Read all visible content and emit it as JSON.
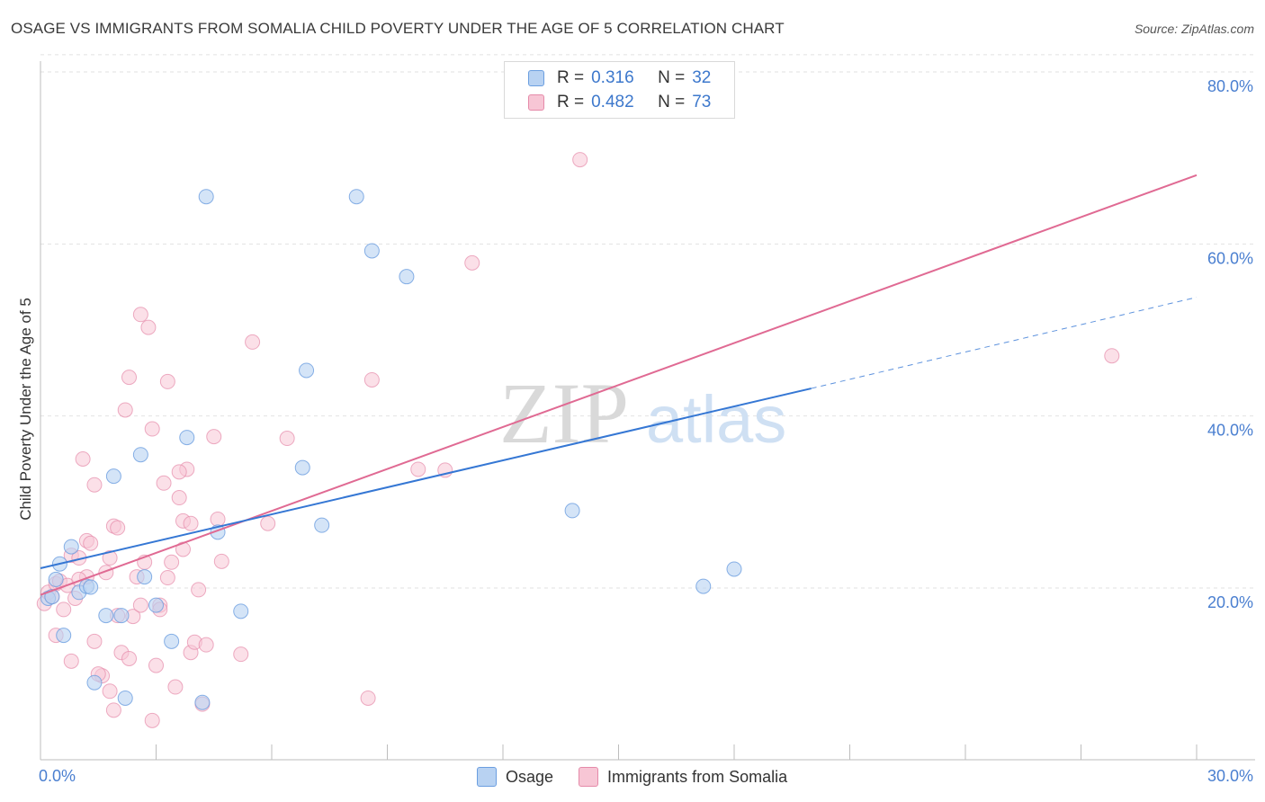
{
  "title": "OSAGE VS IMMIGRANTS FROM SOMALIA CHILD POVERTY UNDER THE AGE OF 5 CORRELATION CHART",
  "source": "Source: ZipAtlas.com",
  "watermark": {
    "zip": "ZIP",
    "atlas": "atlas"
  },
  "legend_top": [
    {
      "r_label": "R =",
      "r_value": "0.316",
      "n_label": "N =",
      "n_value": "32"
    },
    {
      "r_label": "R =",
      "r_value": "0.482",
      "n_label": "N =",
      "n_value": "73"
    }
  ],
  "legend_bottom": [
    "Osage",
    "Immigrants from Somalia"
  ],
  "colors": {
    "osage": "#6b9ee0",
    "osage_fill": "#b8d2f2",
    "osage_line": "#3577d4",
    "somalia": "#e58aa9",
    "somalia_fill": "#f7c6d5",
    "somalia_line": "#e06a93",
    "tick": "#4a7fd0",
    "grid": "#e2e2e2"
  },
  "chart_data": {
    "type": "scatter",
    "title": "OSAGE VS IMMIGRANTS FROM SOMALIA CHILD POVERTY UNDER THE AGE OF 5 CORRELATION CHART",
    "ylabel": "Child Poverty Under the Age of 5",
    "xlabel": "",
    "xlim": [
      0,
      30
    ],
    "ylim": [
      0,
      82
    ],
    "x_tick_labels": [
      {
        "x": 0,
        "label": "0.0%"
      },
      {
        "x": 30,
        "label": "30.0%"
      }
    ],
    "y_tick_labels": [
      {
        "y": 20,
        "label": "20.0%"
      },
      {
        "y": 40,
        "label": "40.0%"
      },
      {
        "y": 60,
        "label": "60.0%"
      },
      {
        "y": 80,
        "label": "80.0%"
      }
    ],
    "x_minor_ticks": [
      3,
      6,
      9,
      12,
      15,
      18,
      21,
      24,
      27,
      30
    ],
    "y_grid": [
      20,
      40,
      60,
      80,
      82
    ],
    "series": [
      {
        "name": "Osage",
        "points": [
          [
            0.2,
            18.8
          ],
          [
            0.4,
            21.0
          ],
          [
            0.5,
            22.8
          ],
          [
            0.6,
            14.5
          ],
          [
            0.8,
            24.8
          ],
          [
            1.0,
            19.5
          ],
          [
            1.2,
            20.2
          ],
          [
            1.4,
            9.0
          ],
          [
            1.7,
            16.8
          ],
          [
            1.9,
            33.0
          ],
          [
            2.1,
            16.8
          ],
          [
            2.2,
            7.2
          ],
          [
            2.6,
            35.5
          ],
          [
            2.7,
            21.3
          ],
          [
            3.0,
            18.0
          ],
          [
            3.4,
            13.8
          ],
          [
            3.8,
            37.5
          ],
          [
            4.2,
            6.7
          ],
          [
            4.3,
            65.5
          ],
          [
            4.6,
            26.5
          ],
          [
            5.2,
            17.3
          ],
          [
            6.8,
            34.0
          ],
          [
            6.9,
            45.3
          ],
          [
            7.3,
            27.3
          ],
          [
            8.2,
            65.5
          ],
          [
            8.6,
            59.2
          ],
          [
            9.5,
            56.2
          ],
          [
            13.8,
            29.0
          ],
          [
            17.2,
            20.2
          ],
          [
            18.0,
            22.2
          ],
          [
            0.3,
            19.0
          ],
          [
            1.3,
            20.1
          ]
        ],
        "trend": {
          "x_start": 0,
          "y_start": 22.3,
          "x_solid_end": 20,
          "y_solid_end": 43.2,
          "x_dash_end": 30,
          "y_dash_end": 53.8
        }
      },
      {
        "name": "Immigrants from Somalia",
        "points": [
          [
            0.1,
            18.2
          ],
          [
            0.2,
            19.5
          ],
          [
            0.3,
            19.0
          ],
          [
            0.4,
            14.5
          ],
          [
            0.4,
            20.5
          ],
          [
            0.5,
            20.8
          ],
          [
            0.6,
            17.5
          ],
          [
            0.7,
            20.3
          ],
          [
            0.8,
            11.5
          ],
          [
            0.8,
            23.8
          ],
          [
            0.9,
            18.8
          ],
          [
            1.0,
            23.5
          ],
          [
            1.1,
            35.0
          ],
          [
            1.2,
            21.3
          ],
          [
            1.2,
            25.5
          ],
          [
            1.3,
            25.2
          ],
          [
            1.4,
            32.0
          ],
          [
            1.4,
            13.8
          ],
          [
            1.6,
            9.8
          ],
          [
            1.7,
            21.8
          ],
          [
            1.8,
            8.0
          ],
          [
            1.8,
            23.5
          ],
          [
            1.9,
            27.2
          ],
          [
            1.9,
            5.8
          ],
          [
            2.0,
            16.8
          ],
          [
            2.1,
            12.5
          ],
          [
            2.2,
            40.7
          ],
          [
            2.3,
            11.8
          ],
          [
            2.3,
            44.5
          ],
          [
            2.4,
            16.7
          ],
          [
            2.5,
            21.3
          ],
          [
            2.6,
            18.0
          ],
          [
            2.6,
            51.8
          ],
          [
            2.7,
            23.0
          ],
          [
            2.8,
            50.3
          ],
          [
            2.9,
            38.5
          ],
          [
            2.9,
            4.6
          ],
          [
            3.0,
            11.0
          ],
          [
            3.1,
            18.0
          ],
          [
            3.2,
            32.2
          ],
          [
            3.3,
            21.2
          ],
          [
            3.3,
            44.0
          ],
          [
            3.4,
            23.0
          ],
          [
            3.5,
            8.5
          ],
          [
            3.6,
            30.5
          ],
          [
            3.7,
            27.8
          ],
          [
            3.7,
            24.5
          ],
          [
            3.8,
            33.8
          ],
          [
            3.9,
            27.5
          ],
          [
            3.9,
            12.5
          ],
          [
            4.0,
            13.7
          ],
          [
            4.1,
            19.8
          ],
          [
            4.2,
            6.5
          ],
          [
            4.3,
            13.4
          ],
          [
            4.5,
            37.6
          ],
          [
            4.6,
            28.0
          ],
          [
            4.7,
            23.1
          ],
          [
            5.2,
            12.3
          ],
          [
            5.5,
            48.6
          ],
          [
            5.9,
            27.5
          ],
          [
            6.4,
            37.4
          ],
          [
            8.5,
            7.2
          ],
          [
            8.6,
            44.2
          ],
          [
            9.8,
            33.8
          ],
          [
            10.5,
            33.7
          ],
          [
            11.2,
            57.8
          ],
          [
            14.0,
            69.8
          ],
          [
            27.8,
            47.0
          ],
          [
            1.0,
            21.0
          ],
          [
            2.0,
            27.0
          ],
          [
            3.1,
            17.5
          ],
          [
            3.6,
            33.5
          ],
          [
            1.5,
            10.0
          ]
        ],
        "trend": {
          "x_start": 0,
          "y_start": 19.2,
          "x_end": 30,
          "y_end": 68.0
        }
      }
    ]
  }
}
